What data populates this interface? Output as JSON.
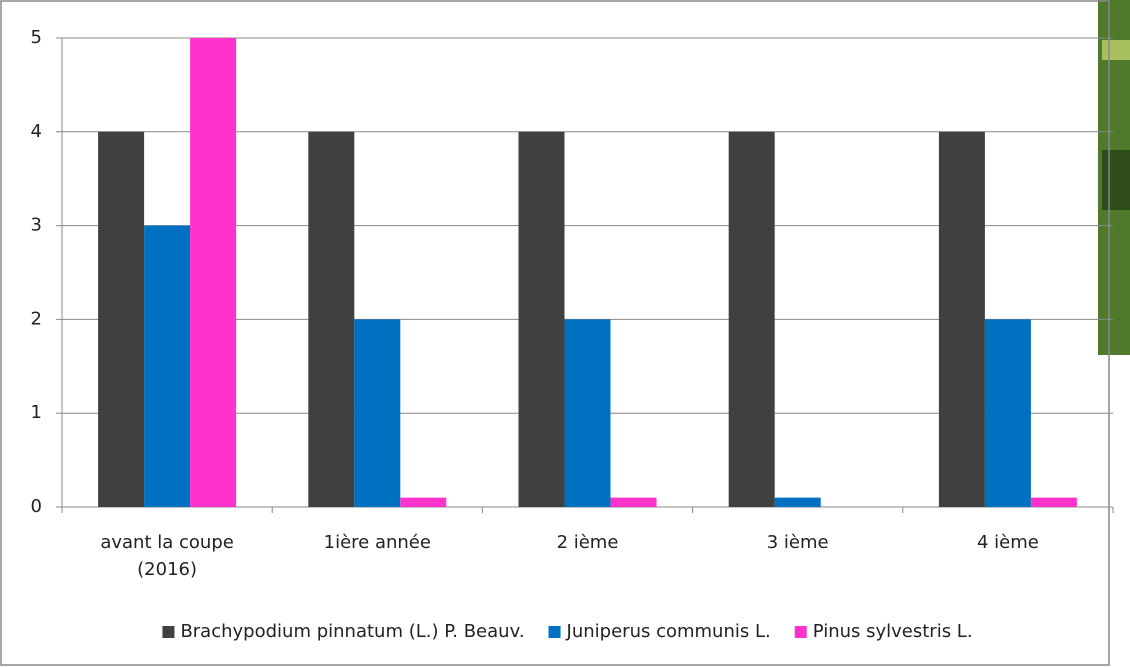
{
  "chart_data": {
    "type": "bar",
    "categories": [
      "avant la coupe (2016)",
      "1ière année",
      "2 ième",
      "3 ième",
      "4 ième"
    ],
    "series": [
      {
        "name": "Brachypodium pinnatum (L.) P. Beauv.",
        "color": "#404040",
        "values": [
          4,
          4,
          4,
          4,
          4
        ]
      },
      {
        "name": "Juniperus communis L.",
        "color": "#0070c0",
        "values": [
          3,
          2,
          2,
          0.1,
          2
        ]
      },
      {
        "name": "Pinus sylvestris L.",
        "color": "#ff33cc",
        "values": [
          5,
          0.1,
          0.1,
          0,
          0.1
        ]
      }
    ],
    "ylim": [
      0,
      5
    ],
    "yticks": [
      0,
      1,
      2,
      3,
      4,
      5
    ],
    "grid": true,
    "legend": "bottom"
  }
}
